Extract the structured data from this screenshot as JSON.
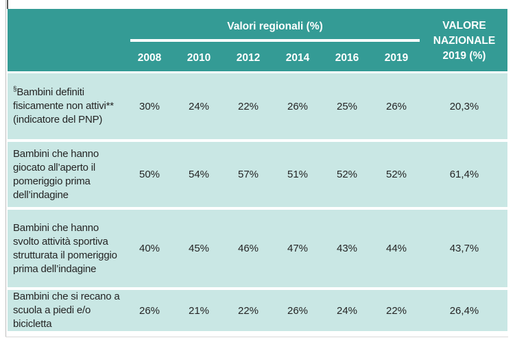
{
  "colors": {
    "header_bg": "#349b95",
    "row_bg": "#c9e7e4",
    "header_text": "#ffffff",
    "body_text": "#242424"
  },
  "table": {
    "header": {
      "group_label": "Valori regionali (%)",
      "years": [
        "2008",
        "2010",
        "2012",
        "2014",
        "2016",
        "2019"
      ],
      "national_line1": "VALORE",
      "national_line2": "NAZIONALE",
      "national_line3": "2019 (%)"
    },
    "rows": [
      {
        "prefix": "§",
        "label": "Bambini definiti fisicamente non attivi** (indicatore del PNP)",
        "values": [
          "30%",
          "24%",
          "22%",
          "26%",
          "25%",
          "26%"
        ],
        "national": "20,3%"
      },
      {
        "prefix": "",
        "label": "Bambini che hanno giocato all’aperto il pomeriggio prima dell’indagine",
        "values": [
          "50%",
          "54%",
          "57%",
          "51%",
          "52%",
          "52%"
        ],
        "national": "61,4%"
      },
      {
        "prefix": "",
        "label": "Bambini che hanno svolto attività sportiva strutturata il pomeriggio prima dell’indagine",
        "values": [
          "40%",
          "45%",
          "46%",
          "47%",
          "43%",
          "44%"
        ],
        "national": "43,7%"
      },
      {
        "prefix": "",
        "label": "Bambini che si recano a scuola a piedi e/o bicicletta",
        "values": [
          "26%",
          "21%",
          "22%",
          "26%",
          "24%",
          "22%"
        ],
        "national": "26,4%"
      }
    ]
  }
}
